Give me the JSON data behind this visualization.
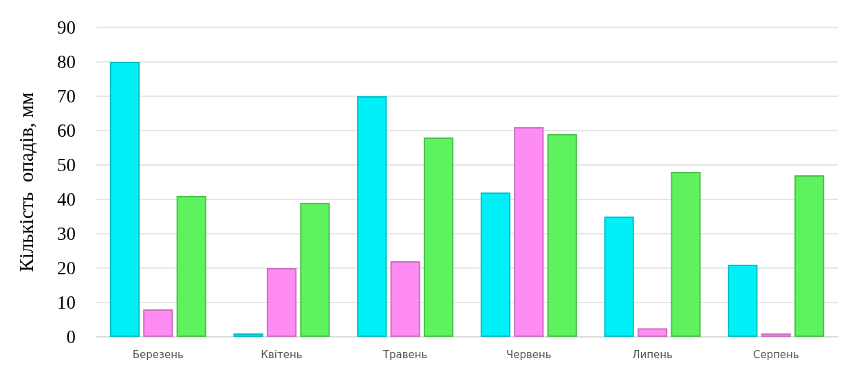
{
  "chart_data": {
    "type": "bar",
    "ylabel": "Кількість  опадів, мм",
    "categories": [
      "Березень",
      "Квітень",
      "Травень",
      "Червень",
      "Липень",
      "Серпень"
    ],
    "series": [
      {
        "color": "#00f0f8",
        "values": [
          80,
          1,
          70,
          42,
          35,
          21
        ]
      },
      {
        "color": "#ff8cf2",
        "values": [
          8,
          20,
          22,
          61,
          2.5,
          1
        ]
      },
      {
        "color": "#5ef25e",
        "values": [
          41,
          39,
          58,
          59,
          48,
          47
        ]
      }
    ],
    "ylim": [
      0,
      90
    ],
    "yticks": [
      0,
      10,
      20,
      30,
      40,
      50,
      60,
      70,
      80,
      90
    ],
    "grid": "y"
  }
}
